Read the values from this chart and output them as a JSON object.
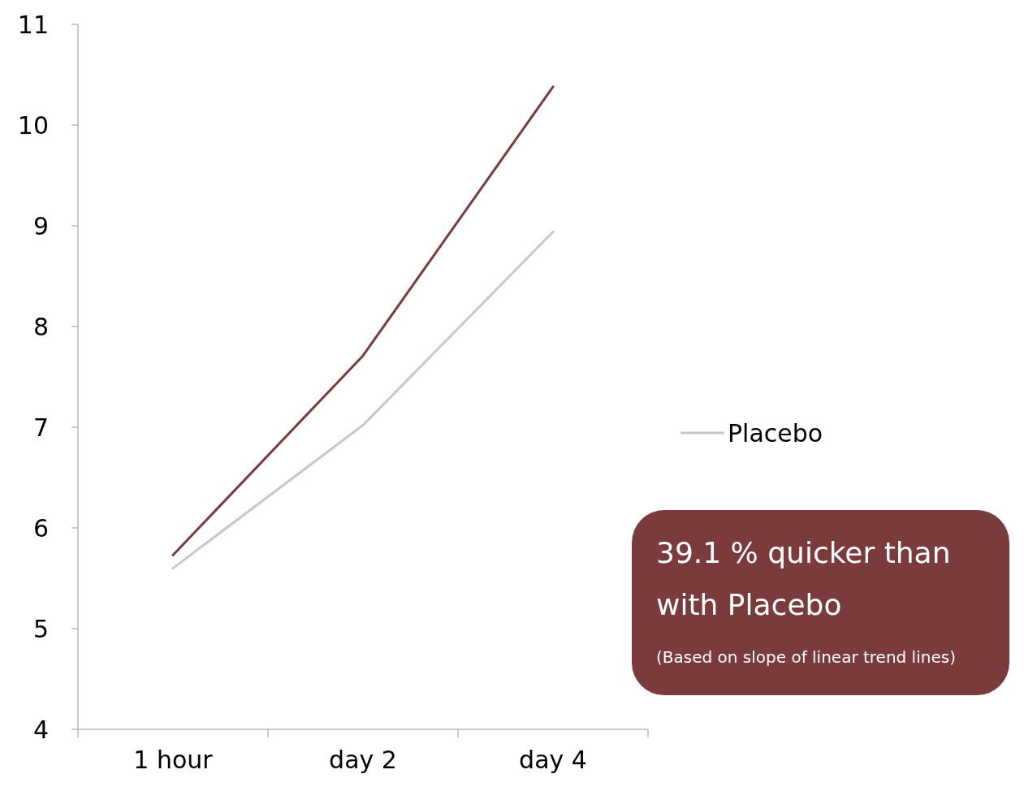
{
  "chart_data": {
    "type": "line",
    "categories": [
      "1 hour",
      "day 2",
      "day 4"
    ],
    "series": [
      {
        "color": "#7b3a3c",
        "values": [
          5.73,
          7.71,
          10.38
        ]
      },
      {
        "name": "Placebo",
        "color": "#c8c8c8",
        "values": [
          5.6,
          7.02,
          8.94
        ]
      }
    ],
    "ylim": [
      4,
      11
    ],
    "yticks": [
      4,
      5,
      6,
      7,
      8,
      9,
      10,
      11
    ],
    "grid": false,
    "legend": "right",
    "marker": "none",
    "line_style": "solid",
    "annotations": [
      "39.1 % quicker than with Placebo",
      "(Based on slope of linear trend lines)"
    ]
  }
}
